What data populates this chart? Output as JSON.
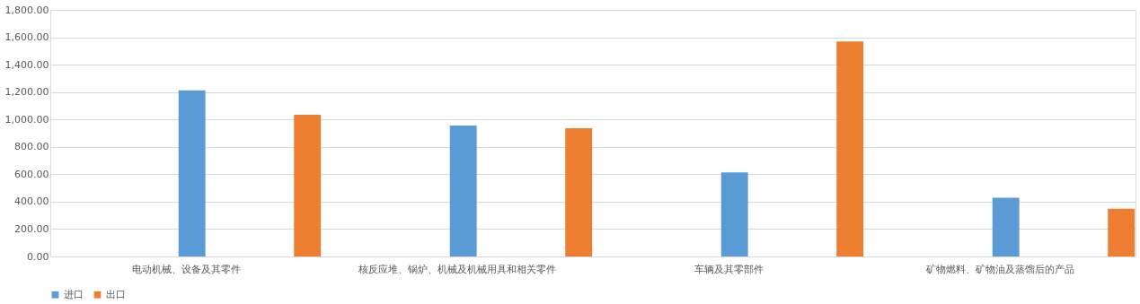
{
  "chart_data": {
    "type": "bar",
    "categories": [
      "电动机械、设备及其零件",
      "核反应堆、锅炉、机械及机械用具和相关零件",
      "车辆及其零部件",
      "矿物燃料、矿物油及蒸馏后的产品"
    ],
    "series": [
      {
        "name": "进口",
        "color": "#5b9bd5",
        "values": [
          1213,
          956,
          613,
          429
        ]
      },
      {
        "name": "出口",
        "color": "#ed7d31",
        "values": [
          1035,
          936,
          1569,
          349
        ]
      }
    ],
    "ylim": [
      0,
      1800
    ],
    "yticks": [
      {
        "value": 0,
        "label": "0.00"
      },
      {
        "value": 200,
        "label": "200.00"
      },
      {
        "value": 400,
        "label": "400.00"
      },
      {
        "value": 600,
        "label": "600.00"
      },
      {
        "value": 800,
        "label": "800.00"
      },
      {
        "value": 1000,
        "label": "1,000.00"
      },
      {
        "value": 1200,
        "label": "1,200.00"
      },
      {
        "value": 1400,
        "label": "1,400.00"
      },
      {
        "value": 1600,
        "label": "1,600.00"
      },
      {
        "value": 1800,
        "label": "1,800.00"
      }
    ],
    "grid": "y",
    "legend": "bottom"
  }
}
